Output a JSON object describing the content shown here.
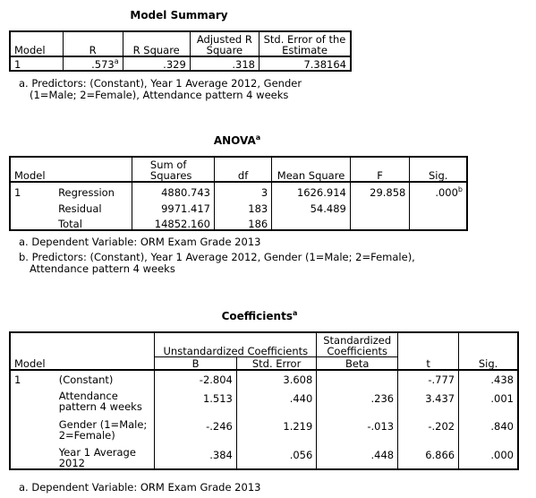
{
  "model_summary": {
    "title": "Model Summary",
    "headers": {
      "model": "Model",
      "r": "R",
      "r_square": "R Square",
      "adj_r_square": "Adjusted R Square",
      "std_error": "Std. Error of the Estimate"
    },
    "row": {
      "model": "1",
      "r": ".573",
      "r_sup": "a",
      "r_square": ".329",
      "adj_r_square": ".318",
      "std_error": "7.38164"
    },
    "note_line1": "a. Predictors: (Constant), Year 1 Average 2012, Gender",
    "note_line2": "(1=Male; 2=Female), Attendance pattern 4 weeks"
  },
  "anova": {
    "title": "ANOVA",
    "title_sup": "a",
    "headers": {
      "model": "Model",
      "ss": "Sum of Squares",
      "df": "df",
      "ms": "Mean Square",
      "f": "F",
      "sig": "Sig."
    },
    "model_num": "1",
    "rows": [
      {
        "label": "Regression",
        "ss": "4880.743",
        "df": "3",
        "ms": "1626.914",
        "f": "29.858",
        "sig": ".000",
        "sig_sup": "b"
      },
      {
        "label": "Residual",
        "ss": "9971.417",
        "df": "183",
        "ms": "54.489",
        "f": "",
        "sig": ""
      },
      {
        "label": "Total",
        "ss": "14852.160",
        "df": "186",
        "ms": "",
        "f": "",
        "sig": ""
      }
    ],
    "note_a": "a. Dependent Variable: ORM Exam Grade 2013",
    "note_b_line1": "b. Predictors: (Constant), Year 1 Average 2012, Gender (1=Male; 2=Female),",
    "note_b_line2": "Attendance pattern 4 weeks"
  },
  "coefficients": {
    "title": "Coefficients",
    "title_sup": "a",
    "headers": {
      "model": "Model",
      "unstd": "Unstandardized Coefficients",
      "b": "B",
      "se": "Std. Error",
      "std_line1": "Standardized",
      "std_line2": "Coefficients",
      "beta": "Beta",
      "t": "t",
      "sig": "Sig."
    },
    "model_num": "1",
    "rows": [
      {
        "label1": "(Constant)",
        "label2": "",
        "b": "-2.804",
        "se": "3.608",
        "beta": "",
        "t": "-.777",
        "sig": ".438"
      },
      {
        "label1": "Attendance",
        "label2": "pattern 4 weeks",
        "b": "1.513",
        "se": ".440",
        "beta": ".236",
        "t": "3.437",
        "sig": ".001"
      },
      {
        "label1": "Gender (1=Male;",
        "label2": "2=Female)",
        "b": "-.246",
        "se": "1.219",
        "beta": "-.013",
        "t": "-.202",
        "sig": ".840"
      },
      {
        "label1": "Year 1 Average",
        "label2": "2012",
        "b": ".384",
        "se": ".056",
        "beta": ".448",
        "t": "6.866",
        "sig": ".000"
      }
    ],
    "note_a": "a. Dependent Variable: ORM Exam Grade 2013"
  }
}
